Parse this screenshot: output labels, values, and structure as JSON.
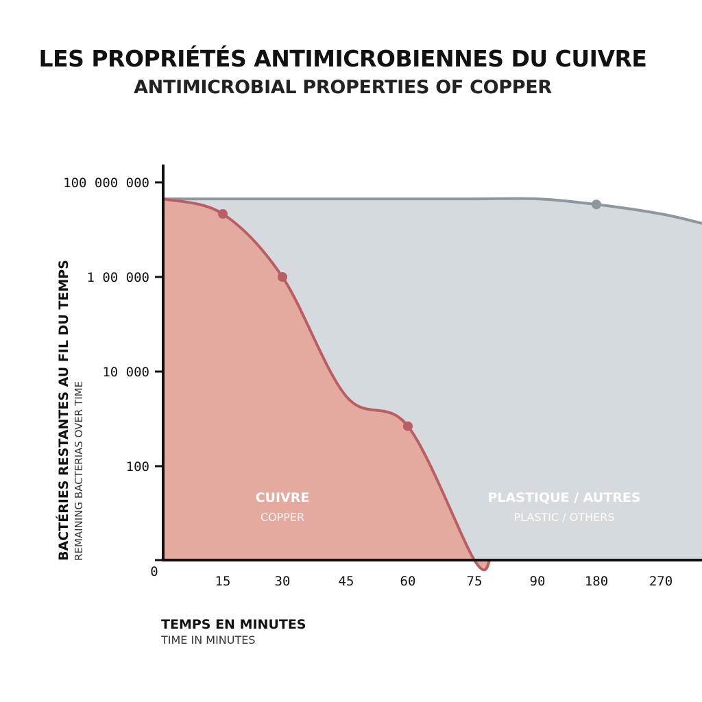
{
  "title": "LES PROPRIÉTÉS ANTIMICROBIENNES DU CUIVRE",
  "subtitle": "ANTIMICROBIAL PROPERTIES OF COPPER",
  "y_axis": {
    "label": "BACTÉRIES RESTANTES AU FIL DU TEMPS",
    "sublabel": "REMAINING BACTERIAS OVER TIME"
  },
  "x_axis": {
    "label": "TEMPS EN MINUTES",
    "sublabel": "TIME IN MINUTES"
  },
  "chart_data": {
    "type": "area",
    "x_ticks": [
      "0",
      "15",
      "30",
      "45",
      "60",
      "75",
      "90",
      "180",
      "270"
    ],
    "y_ticks": [
      "100 000 000",
      "1 00 000",
      "10 000",
      "100",
      ""
    ],
    "y_scale": "log (non-uniform ticks)",
    "series": [
      {
        "name": "PLASTIQUE / AUTRES",
        "sublabel": "PLASTIC / OTHERS",
        "color": "#d5dadf",
        "line_color": "#8e979c",
        "x": [
          "0",
          "15",
          "30",
          "45",
          "60",
          "75",
          "90",
          "180",
          "270",
          "> 270"
        ],
        "y": [
          30000000,
          30000000,
          30000000,
          30000000,
          30000000,
          30000000,
          30000000,
          20000000,
          10000000,
          5000000
        ],
        "markers_at": [
          "180"
        ]
      },
      {
        "name": "CUIVRE",
        "sublabel": "COPPER",
        "color": "#e4aa9f",
        "line_color": "#b85f66",
        "x": [
          "0",
          "15",
          "30",
          "45",
          "60",
          "75",
          "80"
        ],
        "y": [
          30000000,
          10000000,
          100000,
          3000,
          700,
          1,
          0
        ],
        "markers_at": [
          "15",
          "30",
          "60"
        ]
      }
    ],
    "grid": false,
    "legend": "labels inside areas"
  }
}
